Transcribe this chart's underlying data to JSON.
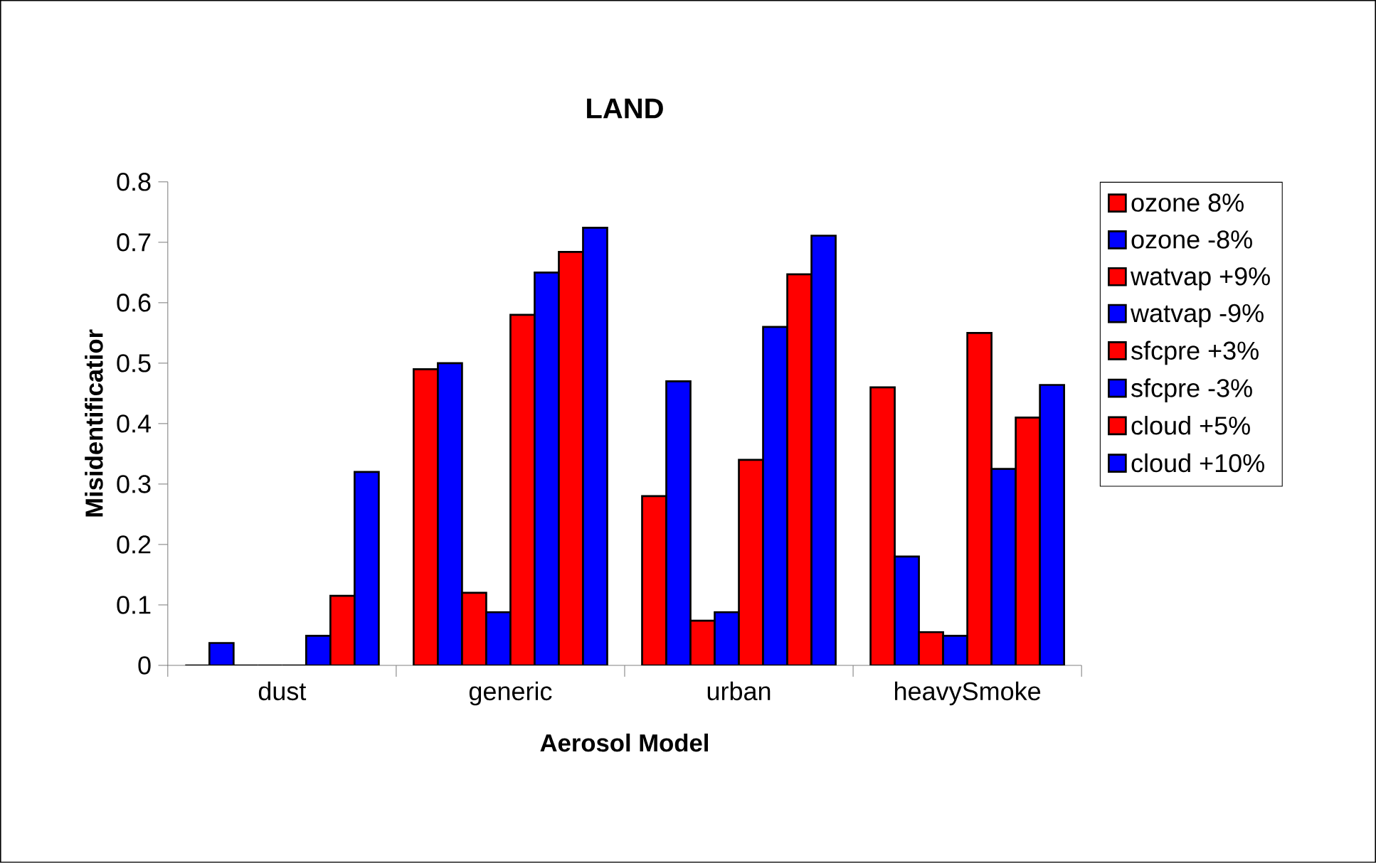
{
  "chart_data": {
    "type": "bar",
    "title": "LAND",
    "xlabel": "Aerosol Model",
    "ylabel": "Misidentificatior",
    "categories": [
      "dust",
      "generic",
      "urban",
      "heavySmoke"
    ],
    "series": [
      {
        "name": "ozone 8%",
        "color": "#ff0000",
        "values": [
          0,
          0.49,
          0.28,
          0.46
        ]
      },
      {
        "name": "ozone -8%",
        "color": "#0000ff",
        "values": [
          0.037,
          0.5,
          0.47,
          0.18
        ]
      },
      {
        "name": "watvap +9%",
        "color": "#ff0000",
        "values": [
          0,
          0.12,
          0.074,
          0.055
        ]
      },
      {
        "name": "watvap -9%",
        "color": "#0000ff",
        "values": [
          0,
          0.088,
          0.088,
          0.049
        ]
      },
      {
        "name": "sfcpre +3%",
        "color": "#ff0000",
        "values": [
          0,
          0.58,
          0.34,
          0.55
        ]
      },
      {
        "name": "sfcpre -3%",
        "color": "#0000ff",
        "values": [
          0.049,
          0.65,
          0.56,
          0.325
        ]
      },
      {
        "name": "cloud +5%",
        "color": "#ff0000",
        "values": [
          0.115,
          0.684,
          0.647,
          0.41
        ]
      },
      {
        "name": "cloud +10%",
        "color": "#0000ff",
        "values": [
          0.32,
          0.724,
          0.711,
          0.464
        ]
      }
    ],
    "ylim": [
      0,
      0.8
    ],
    "yticks": [
      0,
      0.1,
      0.2,
      0.3,
      0.4,
      0.5,
      0.6,
      0.7,
      0.8
    ],
    "legend": "right"
  }
}
